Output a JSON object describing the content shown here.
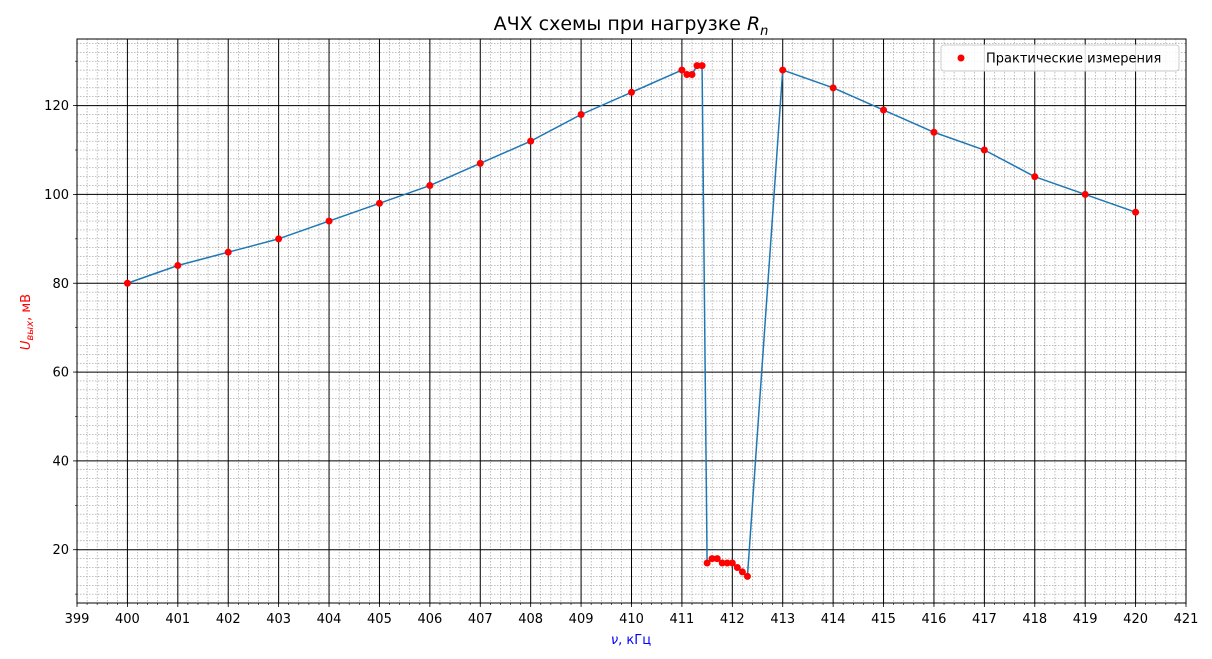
{
  "chart_data": {
    "type": "line",
    "title": {
      "prefix": "АЧХ схемы при нагрузке ",
      "symbol": "R",
      "subscript": "n"
    },
    "xlabel": {
      "symbol": "ν",
      "rest": ", кГц",
      "color": "#0000ff"
    },
    "ylabel": {
      "symbol": "U",
      "subscript": "вых",
      "rest": ", мВ",
      "color": "#ff0000"
    },
    "xlim": [
      399,
      421
    ],
    "ylim": [
      8,
      135
    ],
    "x_major_ticks": [
      399,
      400,
      401,
      402,
      403,
      404,
      405,
      406,
      407,
      408,
      409,
      410,
      411,
      412,
      413,
      414,
      415,
      416,
      417,
      418,
      419,
      420,
      421
    ],
    "x_minor_step": 0.2,
    "y_major_ticks": [
      20,
      40,
      60,
      80,
      100,
      120
    ],
    "y_minor_step": 2,
    "grid": true,
    "legend": {
      "position": "top-right",
      "label": "Практические измерения"
    },
    "series": [
      {
        "name": "Практические измерения",
        "line_color": "#1f77b4",
        "marker_color": "#ff0000",
        "x": [
          400,
          401,
          402,
          403,
          404,
          405,
          406,
          407,
          408,
          409,
          410,
          411,
          411.1,
          411.2,
          411.3,
          411.4,
          411.5,
          411.6,
          411.7,
          411.8,
          411.9,
          412.0,
          412.1,
          412.2,
          412.3,
          413,
          414,
          415,
          416,
          417,
          418,
          419,
          420
        ],
        "y": [
          80,
          84,
          87,
          90,
          94,
          98,
          102,
          107,
          112,
          118,
          123,
          128,
          127,
          127,
          129,
          129,
          17,
          18,
          18,
          17,
          17,
          17,
          16,
          15,
          14,
          128,
          124,
          119,
          114,
          110,
          104,
          100,
          96
        ]
      }
    ]
  }
}
